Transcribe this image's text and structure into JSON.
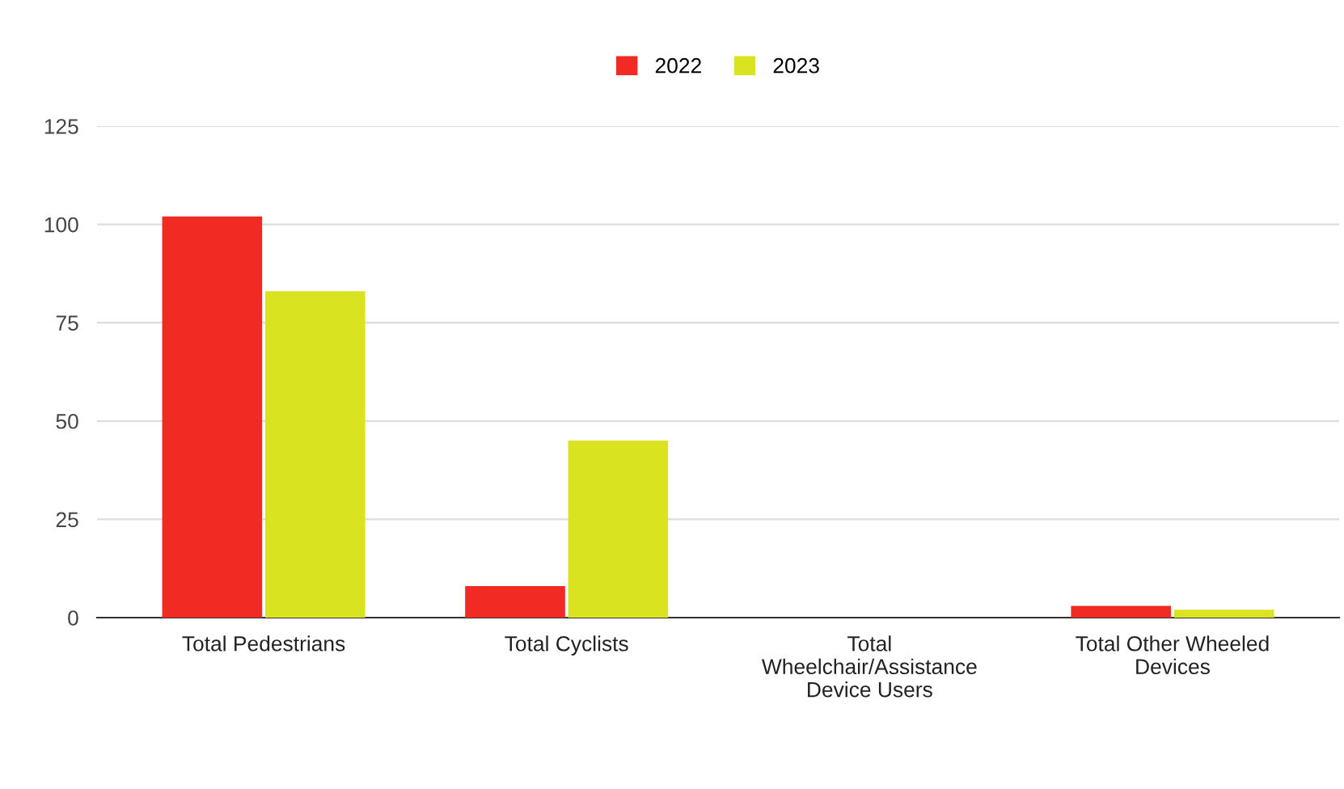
{
  "chart_data": {
    "type": "bar",
    "categories": [
      "Total Pedestrians",
      "Total Cyclists",
      "Total\nWheelchair/Assistance\nDevice Users",
      "Total Other Wheeled\nDevices"
    ],
    "series": [
      {
        "name": "2022",
        "color": "#f22a24",
        "values": [
          102,
          8,
          0,
          3
        ]
      },
      {
        "name": "2023",
        "color": "#d9e320",
        "values": [
          83,
          45,
          0,
          2
        ]
      }
    ],
    "ylim": [
      0,
      125
    ],
    "yticks": [
      0,
      25,
      50,
      75,
      100,
      125
    ],
    "grid": "y",
    "legend": "top"
  }
}
